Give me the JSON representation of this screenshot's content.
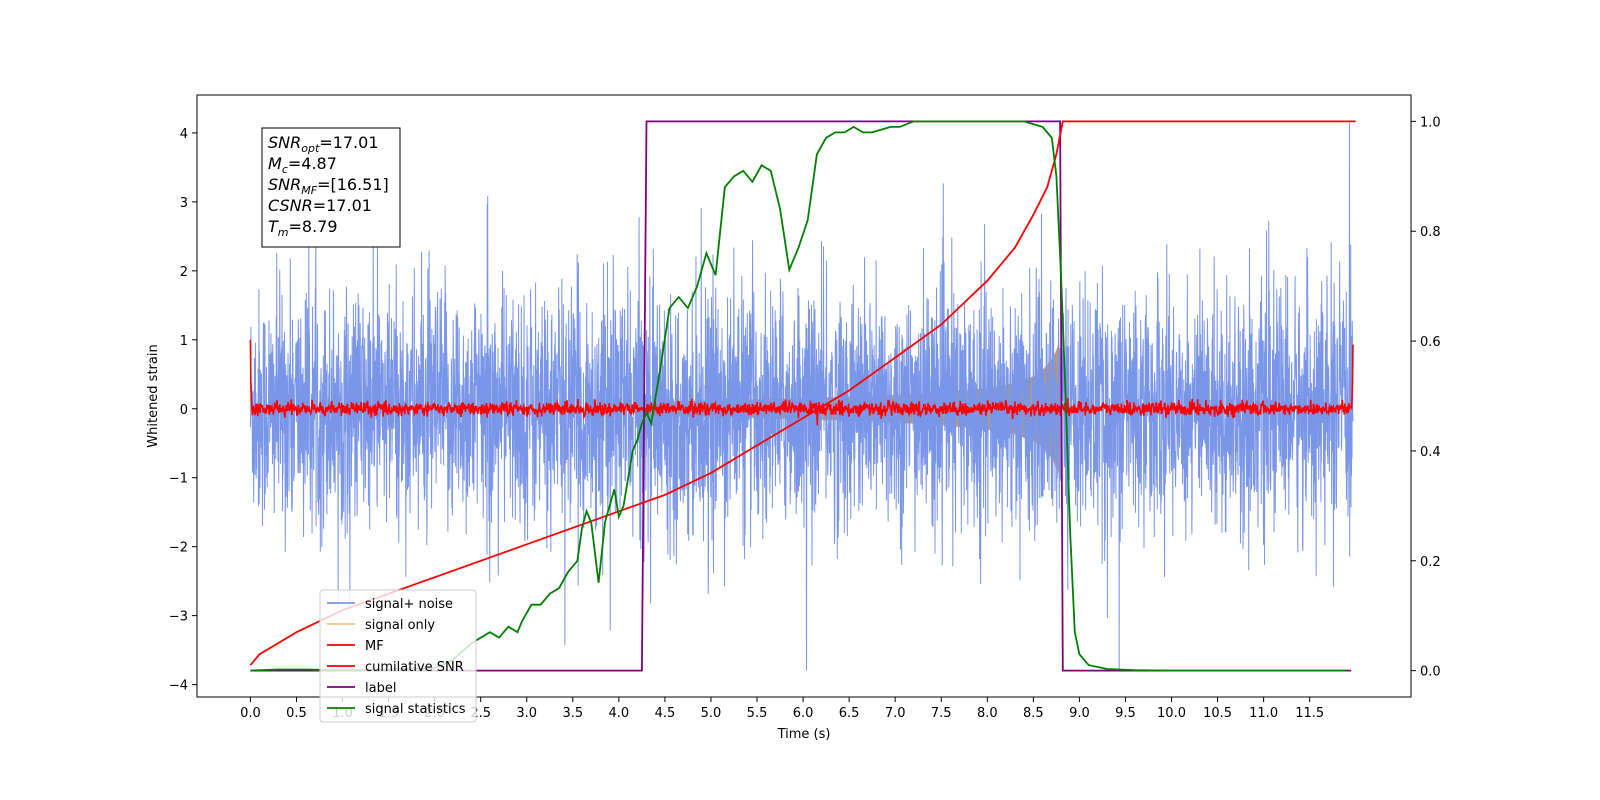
{
  "chart_data": {
    "type": "line",
    "xlabel": "Time (s)",
    "ylabel": "Whitened strain",
    "xlim": [
      -0.58,
      12.6
    ],
    "ylim": [
      -4.18,
      4.55
    ],
    "y2lim": [
      -0.048,
      1.048
    ],
    "xticks": [
      0.0,
      0.5,
      1.0,
      1.5,
      2.0,
      2.5,
      3.0,
      3.5,
      4.0,
      4.5,
      5.0,
      5.5,
      6.0,
      6.5,
      7.0,
      7.5,
      8.0,
      8.5,
      9.0,
      9.5,
      10.0,
      10.5,
      11.0,
      11.5
    ],
    "xtick_labels": [
      "0.0",
      "0.5",
      "1.0",
      "1.5",
      "2.0",
      "2.5",
      "3.0",
      "3.5",
      "4.0",
      "4.5",
      "5.0",
      "5.5",
      "6.0",
      "6.5",
      "7.0",
      "7.5",
      "8.0",
      "8.5",
      "9.0",
      "9.5",
      "10.0",
      "10.5",
      "11.0",
      "11.5"
    ],
    "yticks": [
      -4,
      -3,
      -2,
      -1,
      0,
      1,
      2,
      3,
      4
    ],
    "ytick_labels": [
      "−4",
      "−3",
      "−2",
      "−1",
      "0",
      "1",
      "2",
      "3",
      "4"
    ],
    "y2ticks": [
      0.0,
      0.2,
      0.4,
      0.6,
      0.8,
      1.0
    ],
    "y2tick_labels": [
      "0.0",
      "0.2",
      "0.4",
      "0.6",
      "0.8",
      "1.0"
    ],
    "signal_start": 4.3,
    "merger_time": 8.79,
    "series": [
      {
        "name": "signal+ noise",
        "color": "#7a96e8",
        "axis": "left",
        "noise_sigma": 0.9,
        "envelope_abs": [
          1.9,
          1.9
        ],
        "note_values": "dense noisy whitened strain time series, 0 to 12 s"
      },
      {
        "name": "signal only",
        "color": "#ffbf7f",
        "axis": "left",
        "x": [
          4.3,
          5.0,
          6.0,
          7.0,
          7.5,
          8.0,
          8.3,
          8.5,
          8.6,
          8.7,
          8.75,
          8.79
        ],
        "amplitude": [
          0.1,
          0.12,
          0.15,
          0.2,
          0.24,
          0.3,
          0.37,
          0.47,
          0.56,
          0.72,
          0.85,
          1.0
        ]
      },
      {
        "name": "MF",
        "color": "#ff0000",
        "axis": "left",
        "noise_sigma": 0.05,
        "edge_start": 1.0,
        "edge_end": 0.93
      },
      {
        "name": "cumilative SNR",
        "color": "#ff0000",
        "axis": "right",
        "x": [
          0.0,
          0.1,
          0.5,
          1.0,
          1.5,
          2.0,
          2.5,
          3.0,
          3.5,
          4.0,
          4.5,
          5.0,
          5.5,
          6.0,
          6.5,
          7.0,
          7.5,
          8.0,
          8.3,
          8.5,
          8.65,
          8.75,
          8.82,
          12.0
        ],
        "y": [
          0.01,
          0.03,
          0.07,
          0.11,
          0.14,
          0.17,
          0.2,
          0.23,
          0.26,
          0.29,
          0.32,
          0.36,
          0.41,
          0.46,
          0.51,
          0.57,
          0.63,
          0.71,
          0.77,
          0.83,
          0.88,
          0.94,
          1.0,
          1.0
        ]
      },
      {
        "name": "label",
        "color": "#800080",
        "axis": "right",
        "x": [
          0.0,
          4.25,
          4.3,
          8.79,
          8.82,
          11.95
        ],
        "y": [
          0.0,
          0.0,
          1.0,
          1.0,
          0.0,
          0.0
        ]
      },
      {
        "name": "signal statistics",
        "color": "#008000",
        "axis": "right",
        "x": [
          0.0,
          0.3,
          0.6,
          1.0,
          1.5,
          2.0,
          2.2,
          2.4,
          2.5,
          2.6,
          2.7,
          2.8,
          2.9,
          2.95,
          3.05,
          3.15,
          3.25,
          3.35,
          3.45,
          3.55,
          3.6,
          3.65,
          3.7,
          3.78,
          3.85,
          3.9,
          3.95,
          4.0,
          4.05,
          4.1,
          4.15,
          4.2,
          4.25,
          4.3,
          4.35,
          4.45,
          4.55,
          4.65,
          4.75,
          4.85,
          4.95,
          5.05,
          5.15,
          5.25,
          5.35,
          5.45,
          5.55,
          5.65,
          5.75,
          5.85,
          5.95,
          6.05,
          6.15,
          6.25,
          6.35,
          6.45,
          6.55,
          6.65,
          6.75,
          6.85,
          6.95,
          7.05,
          7.2,
          7.4,
          7.6,
          7.8,
          8.0,
          8.2,
          8.4,
          8.6,
          8.7,
          8.75,
          8.8,
          8.85,
          8.9,
          8.95,
          9.0,
          9.1,
          9.3,
          9.6,
          10.0,
          11.0,
          11.9
        ],
        "y": [
          0.0,
          0.002,
          0.002,
          0.001,
          0.002,
          0.005,
          0.02,
          0.05,
          0.06,
          0.07,
          0.06,
          0.08,
          0.07,
          0.09,
          0.12,
          0.12,
          0.14,
          0.15,
          0.18,
          0.2,
          0.26,
          0.29,
          0.27,
          0.16,
          0.27,
          0.3,
          0.33,
          0.28,
          0.3,
          0.35,
          0.4,
          0.42,
          0.45,
          0.47,
          0.45,
          0.55,
          0.66,
          0.68,
          0.66,
          0.7,
          0.76,
          0.72,
          0.88,
          0.9,
          0.91,
          0.89,
          0.92,
          0.91,
          0.84,
          0.73,
          0.77,
          0.82,
          0.94,
          0.97,
          0.98,
          0.98,
          0.99,
          0.98,
          0.98,
          0.985,
          0.99,
          0.99,
          1.0,
          1.0,
          1.0,
          1.0,
          1.0,
          1.0,
          1.0,
          0.99,
          0.97,
          0.9,
          0.72,
          0.5,
          0.25,
          0.07,
          0.03,
          0.01,
          0.003,
          0.001,
          0.0,
          0.0,
          0.0
        ]
      }
    ],
    "legend": {
      "position": "lower-left",
      "entries": [
        {
          "label": "signal+ noise",
          "color": "#7a96e8"
        },
        {
          "label": "signal only",
          "color": "#ffbf7f"
        },
        {
          "label": "MF",
          "color": "#ff0000"
        },
        {
          "label": "cumilative SNR",
          "color": "#ff0000"
        },
        {
          "label": "label",
          "color": "#800080"
        },
        {
          "label": "signal statistics",
          "color": "#008000"
        }
      ]
    },
    "annotation": {
      "position": "top-left",
      "lines": [
        {
          "name": "SNR",
          "sub": "opt",
          "value": "=17.01"
        },
        {
          "name": "M",
          "sub": "c",
          "value": "=4.87"
        },
        {
          "name": "SNR",
          "sub": "MF",
          "value": "=[16.51]"
        },
        {
          "name": "CSNR",
          "sub": "",
          "value": "=17.01"
        },
        {
          "name": "T",
          "sub": "m",
          "value": "=8.79"
        }
      ]
    }
  }
}
